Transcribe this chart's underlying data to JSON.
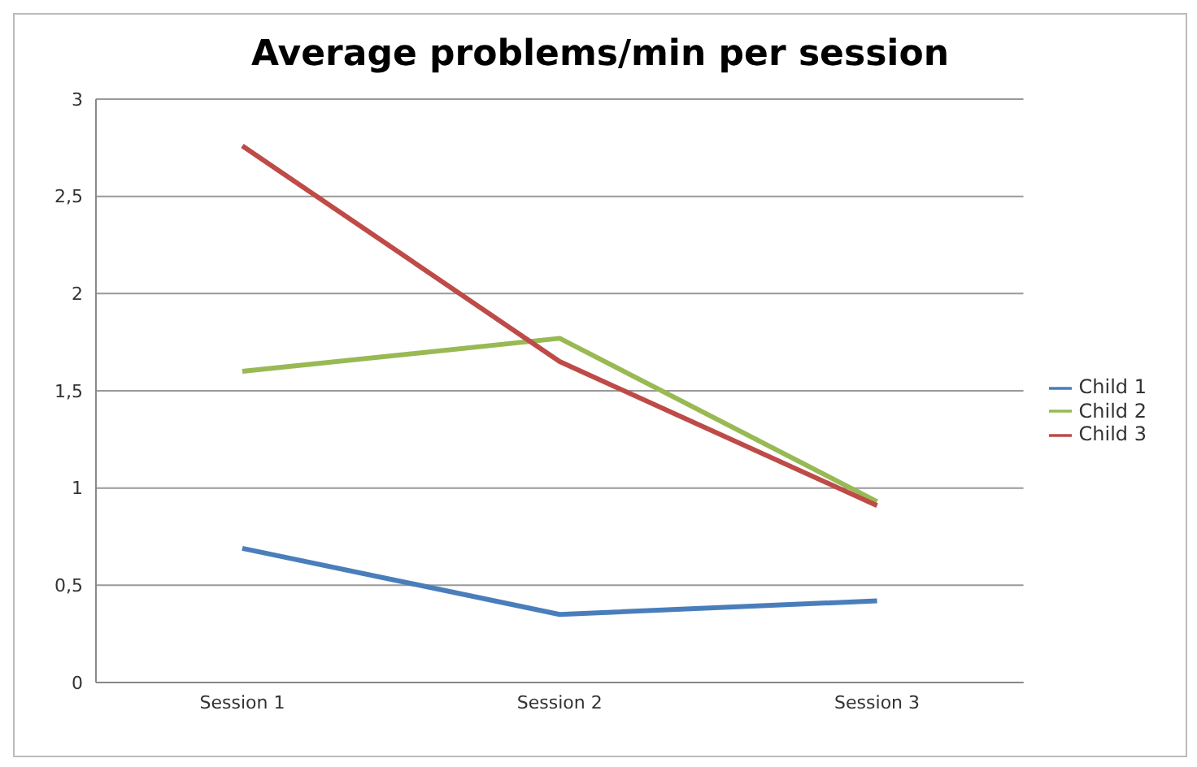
{
  "chart_data": {
    "type": "line",
    "title": "Average problems/min per session",
    "categories": [
      "Session 1",
      "Session 2",
      "Session 3"
    ],
    "series": [
      {
        "name": "Child 1",
        "color": "#4a7ebb",
        "values": [
          0.69,
          0.35,
          0.42
        ]
      },
      {
        "name": "Child 2",
        "color": "#98b954",
        "values": [
          1.6,
          1.77,
          0.93
        ]
      },
      {
        "name": "Child 3",
        "color": "#be4b48",
        "values": [
          2.76,
          1.65,
          0.91
        ]
      }
    ],
    "ylim": [
      0,
      3
    ],
    "yticks": [
      0,
      {
        "value": 0.5,
        "label": "0,5"
      },
      1,
      {
        "value": 1.5,
        "label": "1,5"
      },
      2,
      {
        "value": 2.5,
        "label": "2,5"
      },
      3
    ],
    "grid": "y",
    "legend": "right",
    "marker": "none"
  }
}
